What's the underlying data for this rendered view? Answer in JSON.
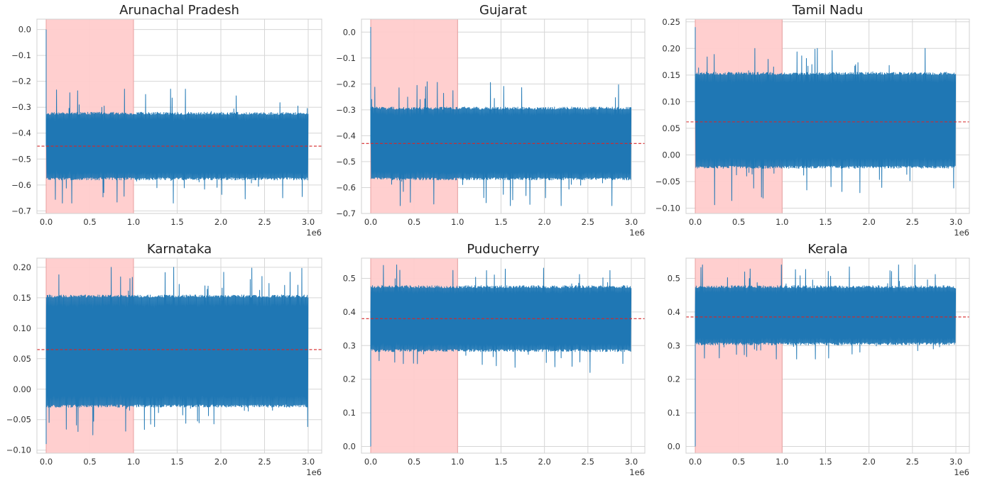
{
  "chart_data": [
    {
      "type": "line",
      "title": "Arunachal Pradesh",
      "x_range": [
        0,
        3000000
      ],
      "x_offset_label": "1e6",
      "xticks": [
        0,
        500000,
        1000000,
        1500000,
        2000000,
        2500000,
        3000000
      ],
      "xtick_labels": [
        "0.0",
        "0.5",
        "1.0",
        "1.5",
        "2.0",
        "2.5",
        "3.0"
      ],
      "ylim": [
        -0.71,
        0.04
      ],
      "yticks": [
        0.0,
        -0.1,
        -0.2,
        -0.3,
        -0.4,
        -0.5,
        -0.6,
        -0.7
      ],
      "ytick_labels": [
        "0.0",
        "−0.1",
        "−0.2",
        "−0.3",
        "−0.4",
        "−0.5",
        "−0.6",
        "−0.7"
      ],
      "series": [
        {
          "start_value": 0.0,
          "band_low": -0.57,
          "band_high": -0.33,
          "spike_high": -0.23,
          "spike_low": -0.67
        }
      ],
      "mean_line": -0.45,
      "shaded_interval": [
        0,
        1000000
      ],
      "grid": true,
      "colors": {
        "series": "#1f77b4",
        "mean": "#d62728",
        "shade": "#ffcccc"
      }
    },
    {
      "type": "line",
      "title": "Gujarat",
      "x_range": [
        0,
        3000000
      ],
      "x_offset_label": "1e6",
      "xticks": [
        0,
        500000,
        1000000,
        1500000,
        2000000,
        2500000,
        3000000
      ],
      "xtick_labels": [
        "0.0",
        "0.5",
        "1.0",
        "1.5",
        "2.0",
        "2.5",
        "3.0"
      ],
      "ylim": [
        -0.7,
        0.05
      ],
      "yticks": [
        0.0,
        -0.1,
        -0.2,
        -0.3,
        -0.4,
        -0.5,
        -0.6,
        -0.7
      ],
      "ytick_labels": [
        "0.0",
        "−0.1",
        "−0.2",
        "−0.3",
        "−0.4",
        "−0.5",
        "−0.6",
        "−0.7"
      ],
      "series": [
        {
          "start_value": 0.02,
          "band_low": -0.56,
          "band_high": -0.3,
          "spike_high": -0.19,
          "spike_low": -0.67
        }
      ],
      "mean_line": -0.43,
      "shaded_interval": [
        0,
        1000000
      ],
      "grid": true,
      "colors": {
        "series": "#1f77b4",
        "mean": "#d62728",
        "shade": "#ffcccc"
      }
    },
    {
      "type": "line",
      "title": "Tamil Nadu",
      "x_range": [
        0,
        3000000
      ],
      "x_offset_label": "1e6",
      "xticks": [
        0,
        500000,
        1000000,
        1500000,
        2000000,
        2500000,
        3000000
      ],
      "xtick_labels": [
        "0.0",
        "0.5",
        "1.0",
        "1.5",
        "2.0",
        "2.5",
        "3.0"
      ],
      "ylim": [
        -0.11,
        0.255
      ],
      "yticks": [
        0.25,
        0.2,
        0.15,
        0.1,
        0.05,
        0.0,
        -0.05,
        -0.1
      ],
      "ytick_labels": [
        "0.25",
        "0.20",
        "0.15",
        "0.10",
        "0.05",
        "0.00",
        "−0.05",
        "−0.10"
      ],
      "series": [
        {
          "start_value": 0.24,
          "band_low": -0.02,
          "band_high": 0.15,
          "spike_high": 0.2,
          "spike_low": -0.095
        }
      ],
      "mean_line": 0.062,
      "shaded_interval": [
        0,
        1000000
      ],
      "grid": true,
      "colors": {
        "series": "#1f77b4",
        "mean": "#d62728",
        "shade": "#ffcccc"
      }
    },
    {
      "type": "line",
      "title": "Karnataka",
      "x_range": [
        0,
        3000000
      ],
      "x_offset_label": "1e6",
      "xticks": [
        0,
        500000,
        1000000,
        1500000,
        2000000,
        2500000,
        3000000
      ],
      "xtick_labels": [
        "0.0",
        "0.5",
        "1.0",
        "1.5",
        "2.0",
        "2.5",
        "3.0"
      ],
      "ylim": [
        -0.105,
        0.215
      ],
      "yticks": [
        0.2,
        0.15,
        0.1,
        0.05,
        0.0,
        -0.05,
        -0.1
      ],
      "ytick_labels": [
        "0.20",
        "0.15",
        "0.10",
        "0.05",
        "0.00",
        "−0.05",
        "−0.10"
      ],
      "series": [
        {
          "start_value": -0.09,
          "band_low": -0.025,
          "band_high": 0.15,
          "spike_high": 0.2,
          "spike_low": -0.075
        }
      ],
      "mean_line": 0.065,
      "shaded_interval": [
        0,
        1000000
      ],
      "grid": true,
      "colors": {
        "series": "#1f77b4",
        "mean": "#d62728",
        "shade": "#ffcccc"
      }
    },
    {
      "type": "line",
      "title": "Puducherry",
      "x_range": [
        0,
        3000000
      ],
      "x_offset_label": "1e6",
      "xticks": [
        0,
        500000,
        1000000,
        1500000,
        2000000,
        2500000,
        3000000
      ],
      "xtick_labels": [
        "0.0",
        "0.5",
        "1.0",
        "1.5",
        "2.0",
        "2.5",
        "3.0"
      ],
      "ylim": [
        -0.02,
        0.56
      ],
      "yticks": [
        0.5,
        0.4,
        0.3,
        0.2,
        0.1,
        0.0
      ],
      "ytick_labels": [
        "0.5",
        "0.4",
        "0.3",
        "0.2",
        "0.1",
        "0.0"
      ],
      "series": [
        {
          "start_value": 0.0,
          "band_low": 0.29,
          "band_high": 0.47,
          "spike_high": 0.54,
          "spike_low": 0.22
        }
      ],
      "mean_line": 0.38,
      "shaded_interval": [
        0,
        1000000
      ],
      "grid": true,
      "colors": {
        "series": "#1f77b4",
        "mean": "#d62728",
        "shade": "#ffcccc"
      }
    },
    {
      "type": "line",
      "title": "Kerala",
      "x_range": [
        0,
        3000000
      ],
      "x_offset_label": "1e6",
      "xticks": [
        0,
        500000,
        1000000,
        1500000,
        2000000,
        2500000,
        3000000
      ],
      "xtick_labels": [
        "0.0",
        "0.5",
        "1.0",
        "1.5",
        "2.0",
        "2.5",
        "3.0"
      ],
      "ylim": [
        -0.02,
        0.56
      ],
      "yticks": [
        0.5,
        0.4,
        0.3,
        0.2,
        0.1,
        0.0
      ],
      "ytick_labels": [
        "0.5",
        "0.4",
        "0.3",
        "0.2",
        "0.1",
        "0.0"
      ],
      "series": [
        {
          "start_value": 0.0,
          "band_low": 0.31,
          "band_high": 0.47,
          "spike_high": 0.54,
          "spike_low": 0.26
        }
      ],
      "mean_line": 0.385,
      "shaded_interval": [
        0,
        1000000
      ],
      "grid": true,
      "colors": {
        "series": "#1f77b4",
        "mean": "#d62728",
        "shade": "#ffcccc"
      }
    }
  ]
}
